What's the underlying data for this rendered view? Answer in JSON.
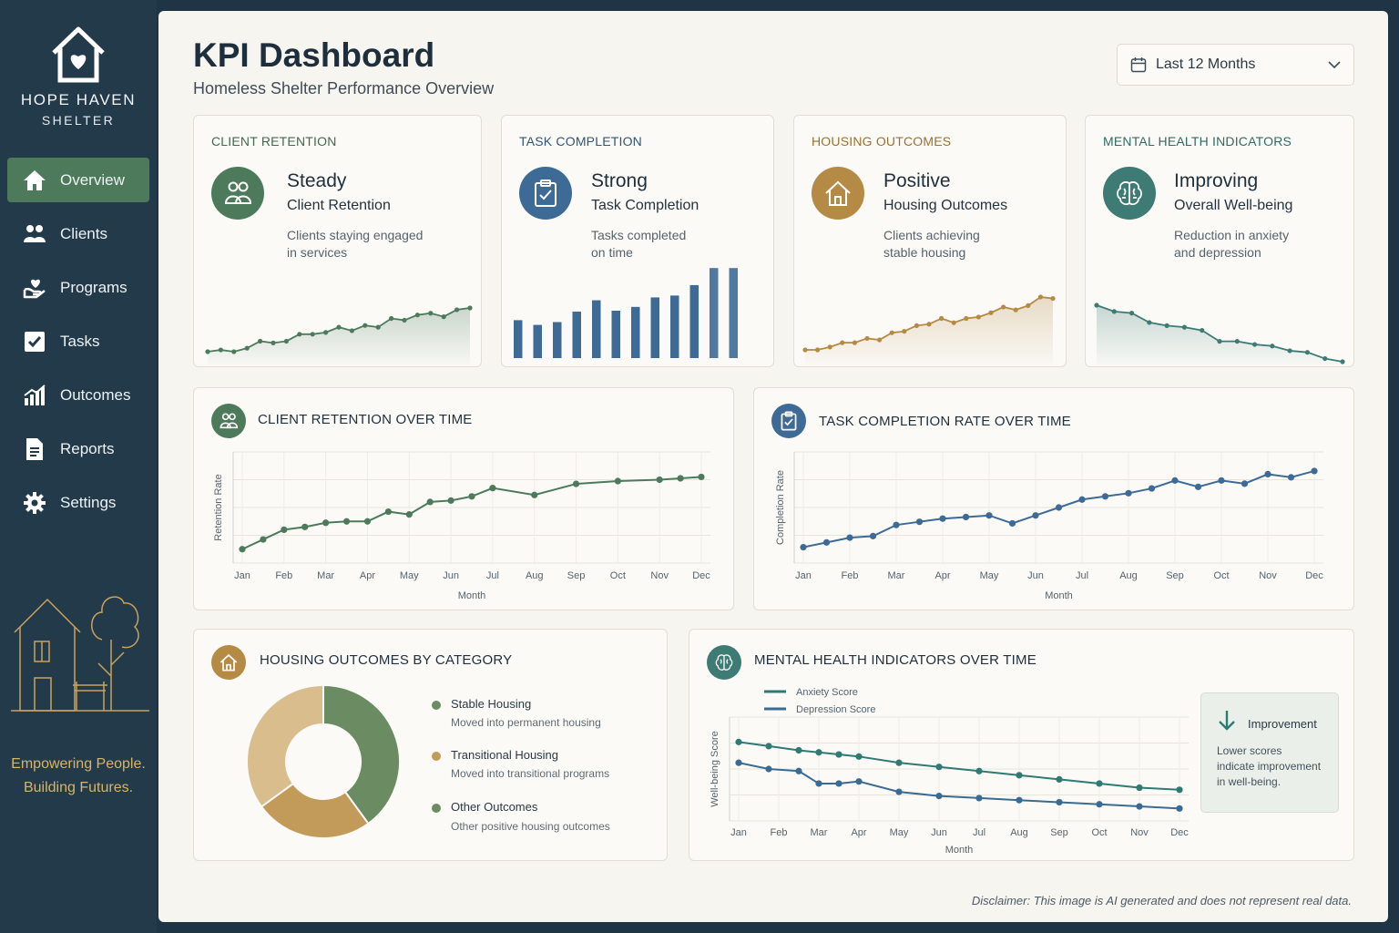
{
  "brand": {
    "name": "HOPE HAVEN",
    "sub": "SHELTER",
    "tagline_1": "Empowering People.",
    "tagline_2": "Building Futures."
  },
  "nav": [
    {
      "label": "Overview",
      "icon": "home-icon",
      "active": true
    },
    {
      "label": "Clients",
      "icon": "users-icon",
      "active": false
    },
    {
      "label": "Programs",
      "icon": "heart-hand-icon",
      "active": false
    },
    {
      "label": "Tasks",
      "icon": "checkbox-icon",
      "active": false
    },
    {
      "label": "Outcomes",
      "icon": "bar-chart-icon",
      "active": false
    },
    {
      "label": "Reports",
      "icon": "document-icon",
      "active": false
    },
    {
      "label": "Settings",
      "icon": "gear-icon",
      "active": false
    }
  ],
  "header": {
    "title": "KPI Dashboard",
    "subtitle": "Homeless Shelter Performance Overview",
    "range": "Last 12 Months"
  },
  "kpis": [
    {
      "title": "CLIENT RETENTION",
      "status": "Steady",
      "name": "Client Retention",
      "desc_1": "Clients staying engaged",
      "desc_2": "in services",
      "color": "#4d7a5b",
      "trend": [
        62,
        63,
        62,
        64,
        68,
        67,
        68,
        72,
        72,
        73,
        76,
        74,
        77,
        76,
        81,
        80,
        83,
        84,
        82,
        86,
        87
      ]
    },
    {
      "title": "TASK COMPLETION",
      "status": "Strong",
      "name": "Task Completion",
      "desc_1": "Tasks completed",
      "desc_2": "on time",
      "color": "#3e6a96",
      "trend": [
        40,
        35,
        38,
        49,
        61,
        50,
        54,
        64,
        66,
        77,
        95,
        95
      ]
    },
    {
      "title": "HOUSING OUTCOMES",
      "status": "Positive",
      "name": "Housing Outcomes",
      "desc_1": "Clients achieving",
      "desc_2": "stable housing",
      "color": "#b58a45",
      "trend": [
        58,
        58,
        60,
        63,
        63,
        66,
        65,
        70,
        71,
        75,
        76,
        80,
        77,
        80,
        81,
        84,
        88,
        86,
        89,
        95,
        94
      ]
    },
    {
      "title": "MENTAL HEALTH INDICATORS",
      "status": "Improving",
      "name": "Overall Well-being",
      "desc_1": "Reduction in anxiety",
      "desc_2": "and depression",
      "color": "#3d7b74",
      "trend": [
        94,
        90,
        89,
        83,
        81,
        80,
        78,
        71,
        71,
        69,
        68,
        65,
        64,
        60,
        58
      ]
    }
  ],
  "chart_data": [
    {
      "type": "line",
      "title": "CLIENT RETENTION OVER TIME",
      "xlabel": "Month",
      "ylabel": "Retention Rate",
      "categories": [
        "Jan",
        "Feb",
        "Mar",
        "Apr",
        "May",
        "Jun",
        "Jul",
        "Aug",
        "Sep",
        "Oct",
        "Nov",
        "Dec"
      ],
      "x": [
        0,
        0.5,
        1,
        1.5,
        2,
        2.5,
        3,
        3.5,
        4,
        4.5,
        5,
        5.5,
        6,
        7,
        8,
        9,
        10,
        10.5,
        11
      ],
      "values": [
        30,
        37,
        44,
        46,
        49,
        50,
        50,
        57,
        55,
        64,
        65,
        68,
        74,
        69,
        77,
        79,
        80,
        81,
        82
      ],
      "ylim": [
        20,
        100
      ],
      "color": "#4d7a5b"
    },
    {
      "type": "line",
      "title": "TASK COMPLETION RATE OVER TIME",
      "xlabel": "Month",
      "ylabel": "Completion Rate",
      "categories": [
        "Jan",
        "Feb",
        "Mar",
        "Apr",
        "May",
        "Jun",
        "Jul",
        "Aug",
        "Sep",
        "Oct",
        "Nov",
        "Dec"
      ],
      "x": [
        0,
        0.5,
        1,
        1.5,
        2,
        2.5,
        3,
        3.5,
        4,
        4.5,
        5,
        5.5,
        6,
        6.5,
        7,
        7.5,
        8,
        8.5,
        9,
        9.5,
        10,
        10.5,
        11
      ],
      "values": [
        30,
        33,
        36,
        37,
        44,
        46,
        48,
        49,
        50,
        45,
        50,
        55,
        60,
        62,
        64,
        67,
        72,
        68,
        72,
        70,
        76,
        74,
        78
      ],
      "ylim": [
        20,
        90
      ],
      "color": "#3e6a96"
    },
    {
      "type": "pie",
      "title": "HOUSING OUTCOMES BY CATEGORY",
      "categories": [
        "Stable Housing",
        "Transitional Housing",
        "Other Outcomes"
      ],
      "descriptions": [
        "Moved into permanent housing",
        "Moved into transitional programs",
        "Other positive housing outcomes"
      ],
      "values": [
        40,
        25,
        35
      ],
      "colors": [
        "#6b8b63",
        "#c29a5a",
        "#d9bd8c"
      ]
    },
    {
      "type": "line",
      "title": "MENTAL HEALTH INDICATORS OVER TIME",
      "xlabel": "Month",
      "ylabel": "Well-being Score",
      "categories": [
        "Jan",
        "Feb",
        "Mar",
        "Apr",
        "May",
        "Jun",
        "Jul",
        "Aug",
        "Sep",
        "Oct",
        "Nov",
        "Dec"
      ],
      "series": [
        {
          "name": "Anxiety Score",
          "color": "#2f7a72",
          "x": [
            0,
            0.75,
            1.5,
            2,
            2.5,
            3,
            4,
            5,
            6,
            7,
            8,
            9,
            10,
            11
          ],
          "values": [
            88,
            86,
            84,
            83,
            82,
            81,
            78,
            76,
            74,
            72,
            70,
            68,
            66,
            65
          ]
        },
        {
          "name": "Depression Score",
          "color": "#3b6b92",
          "x": [
            0,
            0.75,
            1.5,
            2,
            2.5,
            3,
            4,
            5,
            6,
            7,
            8,
            9,
            10,
            11
          ],
          "values": [
            78,
            75,
            74,
            68,
            68,
            69,
            64,
            62,
            61,
            60,
            59,
            58,
            57,
            56
          ]
        }
      ],
      "ylim": [
        50,
        100
      ]
    }
  ],
  "improvement": {
    "title": "Improvement",
    "text_1": "Lower scores",
    "text_2": "indicate improvement",
    "text_3": "in well-being."
  },
  "disclaimer": "Disclaimer: This image is AI generated and does not represent real data."
}
